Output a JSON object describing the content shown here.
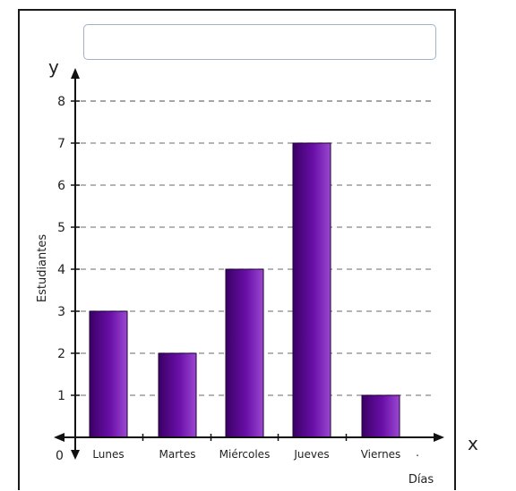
{
  "title_input": {
    "value": "",
    "placeholder": ""
  },
  "colors": {
    "bar": "#5a0a8c",
    "axis": "#111111",
    "grid": "#888888"
  },
  "chart_data": {
    "type": "bar",
    "title": "",
    "categories": [
      "Lunes",
      "Martes",
      "Miércoles",
      "Jueves",
      "Viernes"
    ],
    "values": [
      3,
      2,
      4,
      7,
      1
    ],
    "xlabel": "Días",
    "ylabel": "Estudiantes",
    "x_axis_letter": "x",
    "y_axis_letter": "y",
    "origin_label": "0",
    "yticks": [
      1,
      2,
      3,
      4,
      5,
      6,
      7,
      8
    ],
    "ylim": [
      0,
      8
    ],
    "grid": "horizontal dashed"
  }
}
